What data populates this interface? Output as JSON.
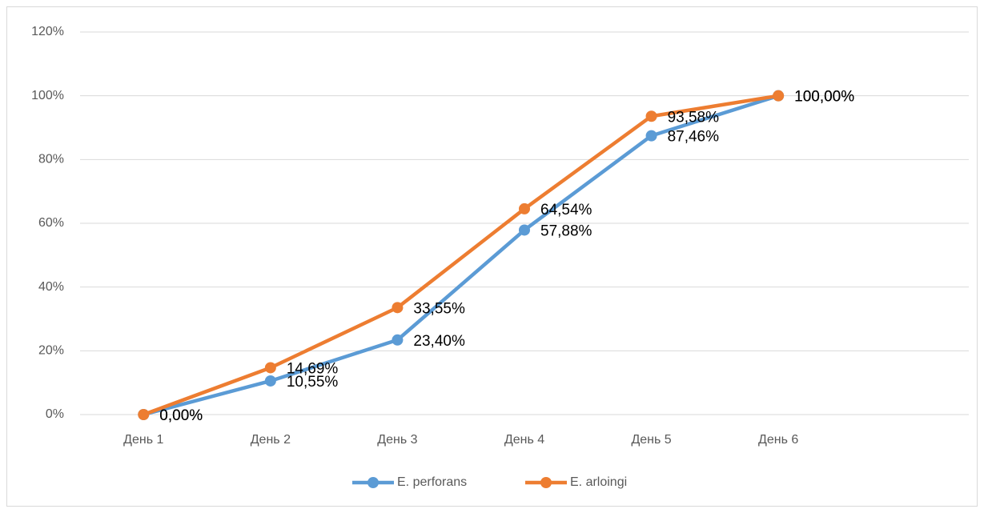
{
  "chart_data": {
    "type": "line",
    "categories": [
      "День 1",
      "День 2",
      "День 3",
      "День 4",
      "День 5",
      "День 6",
      null
    ],
    "series": [
      {
        "name": "E. perforans",
        "color": "#5b9bd5",
        "values": [
          0,
          10.55,
          23.4,
          57.88,
          87.46,
          100,
          null
        ],
        "value_labels": [
          "0,00%",
          "10,55%",
          "23,40%",
          "57,88%",
          "87,46%",
          "100,00%",
          null
        ]
      },
      {
        "name": "E. arloingi",
        "color": "#ed7d31",
        "values": [
          0,
          14.69,
          33.55,
          64.54,
          93.58,
          100,
          null
        ],
        "value_labels": [
          "0,00%",
          "14,69%",
          "33,55%",
          "64,54%",
          "93,58%",
          "100,00%",
          null
        ]
      }
    ],
    "ylim": [
      0,
      120
    ],
    "yticks": [
      {
        "value": 0,
        "label": "0%"
      },
      {
        "value": 20,
        "label": "20%"
      },
      {
        "value": 40,
        "label": "40%"
      },
      {
        "value": 60,
        "label": "60%"
      },
      {
        "value": 80,
        "label": "80%"
      },
      {
        "value": 100,
        "label": "100%"
      },
      {
        "value": 120,
        "label": "120%"
      }
    ],
    "grid": true,
    "legend": "bottom"
  }
}
